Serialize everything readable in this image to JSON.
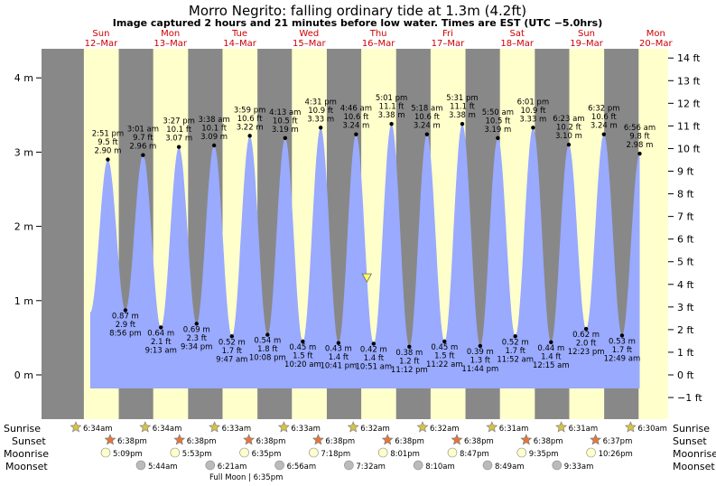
{
  "title": "Morro Negrito: falling  ordinary tide at 1.3m (4.2ft)",
  "subtitle": "Image captured 2 hours and 21 minutes before low water. Times are EST (UTC −5.0hrs)",
  "colors": {
    "night": "#888888",
    "day": "#ffffcc",
    "water": "#99aaff",
    "now_marker": "#ffff66",
    "day_label": "#cc0000",
    "sunrise": "#d4c24a",
    "sunset": "#e0783c",
    "moonrise": "#ffffcc",
    "moonset": "#bbbbbb"
  },
  "chart_data": {
    "type": "area",
    "title": "Morro Negrito: falling  ordinary tide at 1.3m (4.2ft)",
    "y_left_unit": "m",
    "y_left_ticks": [
      "0 m",
      "1 m",
      "2 m",
      "3 m",
      "4 m"
    ],
    "y_right_ticks": [
      "−1 ft",
      "0 ft",
      "1 ft",
      "2 ft",
      "3 ft",
      "4 ft",
      "5 ft",
      "6 ft",
      "7 ft",
      "8 ft",
      "9 ft",
      "10 ft",
      "11 ft",
      "12 ft",
      "13 ft",
      "14 ft"
    ],
    "ylim_m": [
      -0.4,
      4.4
    ],
    "days": [
      {
        "dow": "Sun",
        "date": "12–Mar"
      },
      {
        "dow": "Mon",
        "date": "13–Mar"
      },
      {
        "dow": "Tue",
        "date": "14–Mar"
      },
      {
        "dow": "Wed",
        "date": "15–Mar"
      },
      {
        "dow": "Thu",
        "date": "16–Mar"
      },
      {
        "dow": "Fri",
        "date": "17–Mar"
      },
      {
        "dow": "Sat",
        "date": "18–Mar"
      },
      {
        "dow": "Sun",
        "date": "19–Mar"
      },
      {
        "dow": "Mon",
        "date": "20–Mar"
      }
    ],
    "extremes": [
      {
        "kind": "high",
        "time": "2:51 pm",
        "ft": "9.5 ft",
        "m": "2.90 m",
        "t": 14.85
      },
      {
        "kind": "low",
        "m": "0.87 m",
        "ft": "2.9 ft",
        "time": "8:56 pm",
        "t": 20.93
      },
      {
        "kind": "high",
        "time": "3:01 am",
        "ft": "9.7 ft",
        "m": "2.96 m",
        "t": 27.02
      },
      {
        "kind": "low",
        "m": "0.64 m",
        "ft": "2.1 ft",
        "time": "9:13 am",
        "t": 33.22
      },
      {
        "kind": "high",
        "time": "3:27 pm",
        "ft": "10.1 ft",
        "m": "3.07 m",
        "t": 39.45
      },
      {
        "kind": "low",
        "m": "0.69 m",
        "ft": "2.3 ft",
        "time": "9:34 pm",
        "t": 45.57
      },
      {
        "kind": "high",
        "time": "3:38 am",
        "ft": "10.1 ft",
        "m": "3.09 m",
        "t": 51.63
      },
      {
        "kind": "low",
        "m": "0.52 m",
        "ft": "1.7 ft",
        "time": "9:47 am",
        "t": 57.78
      },
      {
        "kind": "high",
        "time": "3:59 pm",
        "ft": "10.6 ft",
        "m": "3.22 m",
        "t": 63.98
      },
      {
        "kind": "low",
        "m": "0.54 m",
        "ft": "1.8 ft",
        "time": "10:08 pm",
        "t": 70.13
      },
      {
        "kind": "high",
        "time": "4:13 am",
        "ft": "10.5 ft",
        "m": "3.19 m",
        "t": 76.22
      },
      {
        "kind": "low",
        "m": "0.45 m",
        "ft": "1.5 ft",
        "time": "10:20 am",
        "t": 82.33
      },
      {
        "kind": "high",
        "time": "4:31 pm",
        "ft": "10.9 ft",
        "m": "3.33 m",
        "t": 88.52
      },
      {
        "kind": "low",
        "m": "0.43 m",
        "ft": "1.4 ft",
        "time": "10:41 pm",
        "t": 94.68
      },
      {
        "kind": "high",
        "time": "4:46 am",
        "ft": "10.6 ft",
        "m": "3.24 m",
        "t": 100.77
      },
      {
        "kind": "low",
        "m": "0.42 m",
        "ft": "1.4 ft",
        "time": "10:51 am",
        "t": 106.85
      },
      {
        "kind": "high",
        "time": "5:01 pm",
        "ft": "11.1 ft",
        "m": "3.38 m",
        "t": 113.02
      },
      {
        "kind": "low",
        "m": "0.38 m",
        "ft": "1.2 ft",
        "time": "11:12 pm",
        "t": 119.2
      },
      {
        "kind": "high",
        "time": "5:18 am",
        "ft": "10.6 ft",
        "m": "3.24 m",
        "t": 125.3
      },
      {
        "kind": "low",
        "m": "0.45 m",
        "ft": "1.5 ft",
        "time": "11:22 am",
        "t": 131.37
      },
      {
        "kind": "high",
        "time": "5:31 pm",
        "ft": "11.1 ft",
        "m": "3.38 m",
        "t": 137.52
      },
      {
        "kind": "low",
        "m": "0.39 m",
        "ft": "1.3 ft",
        "time": "11:44 pm",
        "t": 143.73
      },
      {
        "kind": "high",
        "time": "5:50 am",
        "ft": "10.5 ft",
        "m": "3.19 m",
        "t": 149.83
      },
      {
        "kind": "low",
        "m": "0.52 m",
        "ft": "1.7 ft",
        "time": "11:52 am",
        "t": 155.87
      },
      {
        "kind": "high",
        "time": "6:01 pm",
        "ft": "10.9 ft",
        "m": "3.33 m",
        "t": 162.02
      },
      {
        "kind": "low",
        "m": "0.44 m",
        "ft": "1.4 ft",
        "time": "12:15 am",
        "t": 168.25
      },
      {
        "kind": "high",
        "time": "6:23 am",
        "ft": "10.2 ft",
        "m": "3.10 m",
        "t": 174.38
      },
      {
        "kind": "low",
        "m": "0.62 m",
        "ft": "2.0 ft",
        "time": "12:23 pm",
        "t": 180.38
      },
      {
        "kind": "high",
        "time": "6:32 pm",
        "ft": "10.6 ft",
        "m": "3.24 m",
        "t": 186.53
      },
      {
        "kind": "low",
        "m": "0.53 m",
        "ft": "1.7 ft",
        "time": "12:49 am",
        "t": 192.82
      },
      {
        "kind": "high",
        "time": "6:56 am",
        "ft": "9.8 ft",
        "m": "2.98 m",
        "t": 198.93
      }
    ],
    "current": {
      "m": 1.3,
      "t": 104.5
    }
  },
  "almanac": {
    "labels": {
      "sunrise": "Sunrise",
      "sunset": "Sunset",
      "moonrise": "Moonrise",
      "moonset": "Moonset"
    },
    "sunrise": [
      "6:34am",
      "6:34am",
      "6:33am",
      "6:33am",
      "6:32am",
      "6:32am",
      "6:31am",
      "6:31am",
      "6:30am"
    ],
    "sunset": [
      "6:38pm",
      "6:38pm",
      "6:38pm",
      "6:38pm",
      "6:38pm",
      "6:38pm",
      "6:38pm",
      "6:37pm"
    ],
    "moonrise": [
      "5:09pm",
      "5:53pm",
      "6:35pm",
      "7:18pm",
      "8:01pm",
      "8:47pm",
      "9:35pm",
      "10:26pm"
    ],
    "moonset": [
      "5:44am",
      "6:21am",
      "6:56am",
      "7:32am",
      "8:10am",
      "8:49am",
      "9:33am"
    ],
    "full_moon": "Full Moon | 6:35pm"
  }
}
